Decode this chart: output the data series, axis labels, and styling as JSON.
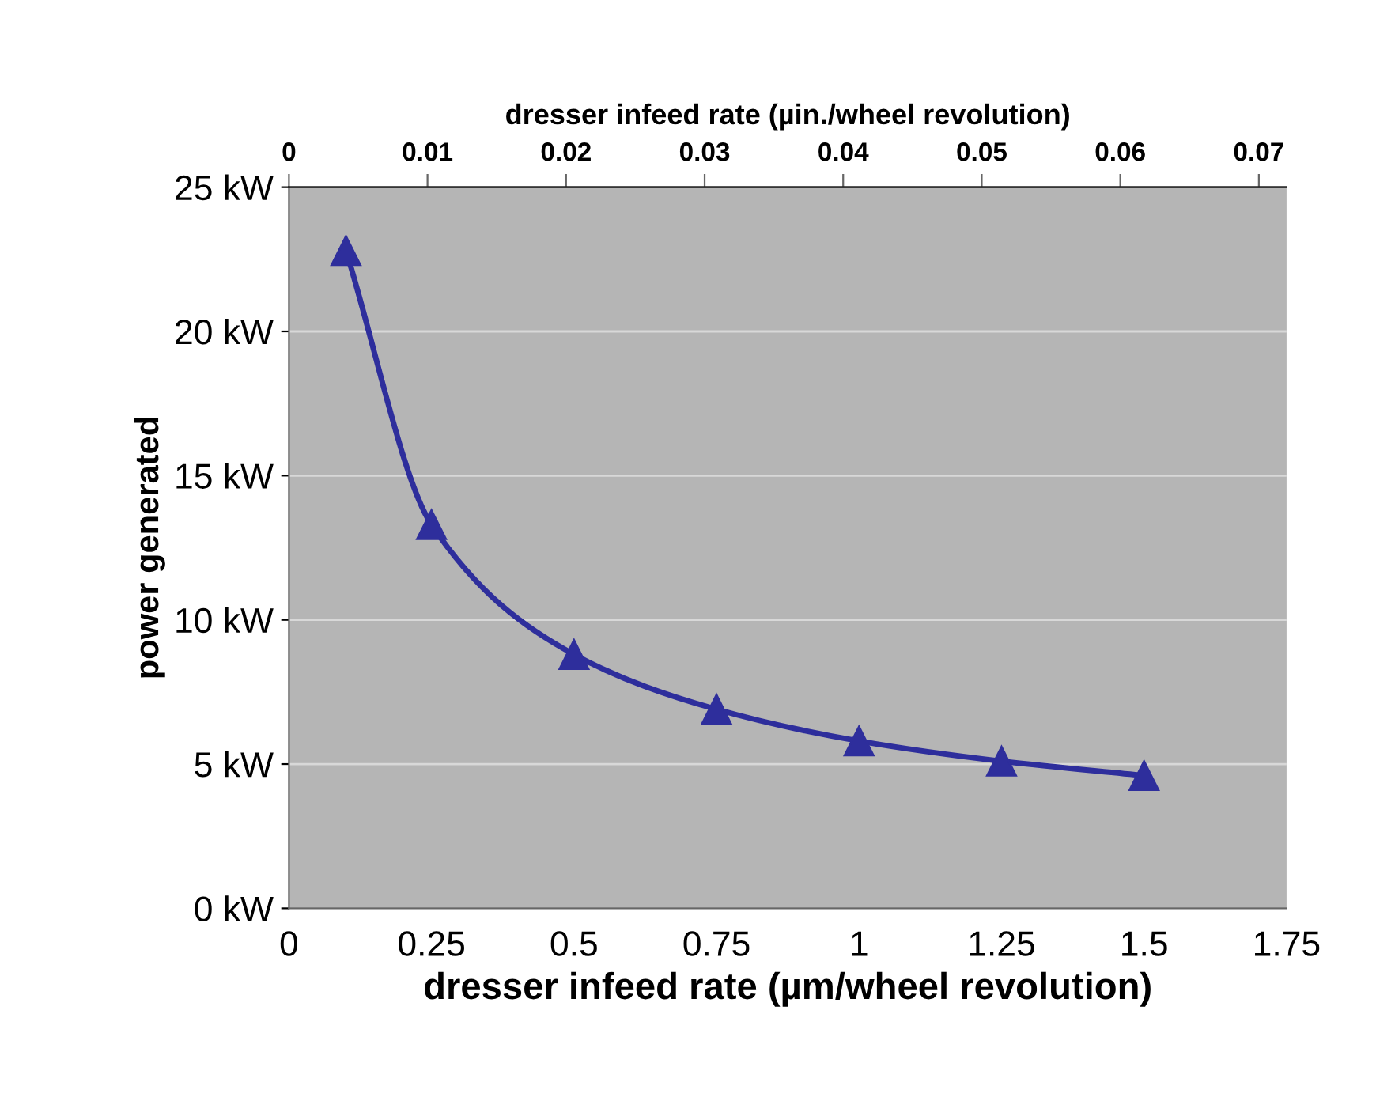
{
  "chart_data": {
    "type": "line",
    "xlabel": "dresser infeed rate (µm/wheel revolution)",
    "ylabel": "power generated",
    "x2label": "dresser infeed rate (µin./wheel revolution)",
    "series": [
      {
        "color": "#2e2e9c",
        "x": [
          0.1,
          0.25,
          0.5,
          0.75,
          1,
          1.25,
          1.5
        ],
        "values": [
          22.8,
          13.3,
          8.8,
          6.9,
          5.8,
          5.1,
          4.6
        ]
      }
    ],
    "marker": "triangle",
    "line_style": "solid",
    "grid": "y",
    "legend": false,
    "xlim": [
      0,
      1.75
    ],
    "xticks": [
      0,
      0.25,
      0.5,
      0.75,
      1,
      1.25,
      1.5,
      1.75
    ],
    "ylim": [
      0,
      25
    ],
    "yticks": [
      {
        "value": 0,
        "label": "0 kW"
      },
      {
        "value": 5,
        "label": "5 kW"
      },
      {
        "value": 10,
        "label": "10 kW"
      },
      {
        "value": 15,
        "label": "15 kW"
      },
      {
        "value": 20,
        "label": "20 kW"
      },
      {
        "value": 25,
        "label": "25 kW"
      }
    ],
    "x2lim": [
      0,
      0.072
    ],
    "x2ticks": [
      0,
      0.01,
      0.02,
      0.03,
      0.04,
      0.05,
      0.06,
      0.07
    ]
  }
}
